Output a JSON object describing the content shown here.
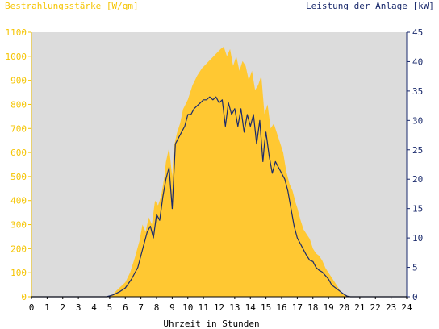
{
  "chart_data": {
    "type": "area",
    "title_left": "Bestrahlungsstärke [W/qm]",
    "title_right": "Leistung der Anlage [kW]",
    "xlabel": "Uhrzeit in Stunden",
    "x_ticks": [
      0,
      1,
      2,
      3,
      4,
      5,
      6,
      7,
      8,
      9,
      10,
      11,
      12,
      13,
      14,
      15,
      16,
      17,
      18,
      19,
      20,
      21,
      22,
      23,
      24
    ],
    "x_tick_labels": [
      "0",
      "1",
      "2",
      "3",
      "4",
      "5",
      "6",
      "7",
      "8",
      "9",
      "10",
      "11",
      "12",
      "13",
      "14",
      "15",
      "16",
      "17",
      "18",
      "19",
      "20",
      "21",
      "22",
      "23",
      "24"
    ],
    "xlim": [
      0,
      24
    ],
    "y_left": {
      "ylim": [
        0,
        1100
      ],
      "ticks": [
        0,
        100,
        200,
        300,
        400,
        500,
        600,
        700,
        800,
        900,
        1000,
        1100
      ],
      "tick_labels": [
        "0",
        "100",
        "200",
        "300",
        "400",
        "500",
        "600",
        "700",
        "800",
        "900",
        "1000",
        "1100"
      ]
    },
    "y_right": {
      "ylim": [
        0,
        45
      ],
      "ticks": [
        0,
        5,
        10,
        15,
        20,
        25,
        30,
        35,
        40,
        45
      ],
      "tick_labels": [
        "0",
        "5",
        "10",
        "15",
        "20",
        "25",
        "30",
        "35",
        "40",
        "45"
      ]
    },
    "grid": false,
    "colors": {
      "irradiance_fill": "#ffc832",
      "power_line": "#1a2a6c",
      "plot_background": "#dcdcdc",
      "left_axis_text": "#f5c400",
      "right_axis_text": "#1a2a6c"
    },
    "series": [
      {
        "axis": "left",
        "style": "area",
        "x": [
          0,
          4.8,
          5.2,
          5.5,
          6.0,
          6.3,
          6.6,
          6.9,
          7.1,
          7.3,
          7.5,
          7.7,
          7.9,
          8.1,
          8.3,
          8.5,
          8.6,
          8.8,
          9.0,
          9.1,
          9.3,
          9.5,
          9.7,
          10.0,
          10.3,
          10.6,
          10.9,
          11.2,
          11.5,
          11.8,
          12.1,
          12.3,
          12.5,
          12.7,
          12.9,
          13.1,
          13.3,
          13.5,
          13.7,
          13.9,
          14.1,
          14.3,
          14.5,
          14.7,
          14.9,
          15.1,
          15.3,
          15.5,
          15.7,
          15.9,
          16.1,
          16.3,
          16.5,
          16.7,
          16.9,
          17.0,
          17.2,
          17.4,
          17.6,
          17.8,
          18.0,
          18.2,
          18.4,
          18.6,
          18.8,
          19.0,
          19.2,
          19.4,
          19.6,
          19.8,
          20.0,
          20.2,
          20.4,
          24
        ],
        "y": [
          0,
          0,
          10,
          30,
          60,
          100,
          160,
          230,
          300,
          270,
          330,
          300,
          400,
          380,
          420,
          500,
          560,
          620,
          500,
          620,
          680,
          720,
          780,
          820,
          880,
          920,
          950,
          970,
          990,
          1010,
          1030,
          1040,
          1000,
          1030,
          960,
          1000,
          940,
          980,
          960,
          900,
          940,
          860,
          880,
          920,
          760,
          800,
          700,
          720,
          680,
          640,
          600,
          520,
          470,
          440,
          390,
          370,
          320,
          280,
          260,
          240,
          200,
          180,
          170,
          150,
          120,
          100,
          80,
          60,
          40,
          20,
          10,
          5,
          0,
          0
        ]
      },
      {
        "axis": "right",
        "style": "line",
        "x": [
          0,
          4.8,
          5.2,
          5.6,
          6.0,
          6.4,
          6.8,
          7.0,
          7.2,
          7.4,
          7.6,
          7.8,
          8.0,
          8.2,
          8.4,
          8.6,
          8.8,
          9.0,
          9.2,
          9.4,
          9.6,
          9.8,
          10.0,
          10.2,
          10.4,
          10.6,
          10.8,
          11.0,
          11.2,
          11.4,
          11.6,
          11.8,
          12.0,
          12.2,
          12.4,
          12.6,
          12.8,
          13.0,
          13.2,
          13.4,
          13.6,
          13.8,
          14.0,
          14.2,
          14.4,
          14.6,
          14.8,
          14.9,
          15.0,
          15.2,
          15.4,
          15.6,
          15.8,
          16.0,
          16.2,
          16.4,
          16.6,
          16.8,
          17.0,
          17.2,
          17.4,
          17.6,
          17.8,
          18.0,
          18.2,
          18.4,
          18.6,
          18.8,
          19.0,
          19.2,
          19.4,
          19.6,
          19.8,
          20.0,
          20.2,
          20.4,
          24
        ],
        "y": [
          0,
          0,
          0.3,
          0.8,
          1.5,
          3,
          5,
          7,
          9,
          11,
          12,
          10,
          14,
          13,
          17,
          20,
          22,
          15,
          26,
          27,
          28,
          29,
          31,
          31,
          32,
          32.5,
          33,
          33.5,
          33.5,
          34,
          33.5,
          34,
          33,
          33.5,
          29,
          33,
          31,
          32,
          29,
          32,
          28,
          31,
          29,
          31,
          26,
          30,
          23,
          26,
          28,
          24,
          21,
          23,
          22,
          21,
          20,
          18,
          15,
          12,
          10,
          9,
          8,
          7,
          6.2,
          6,
          5,
          4.5,
          4.2,
          3.6,
          3,
          2,
          1.6,
          1.2,
          0.8,
          0.4,
          0.1,
          0,
          0
        ]
      }
    ]
  }
}
